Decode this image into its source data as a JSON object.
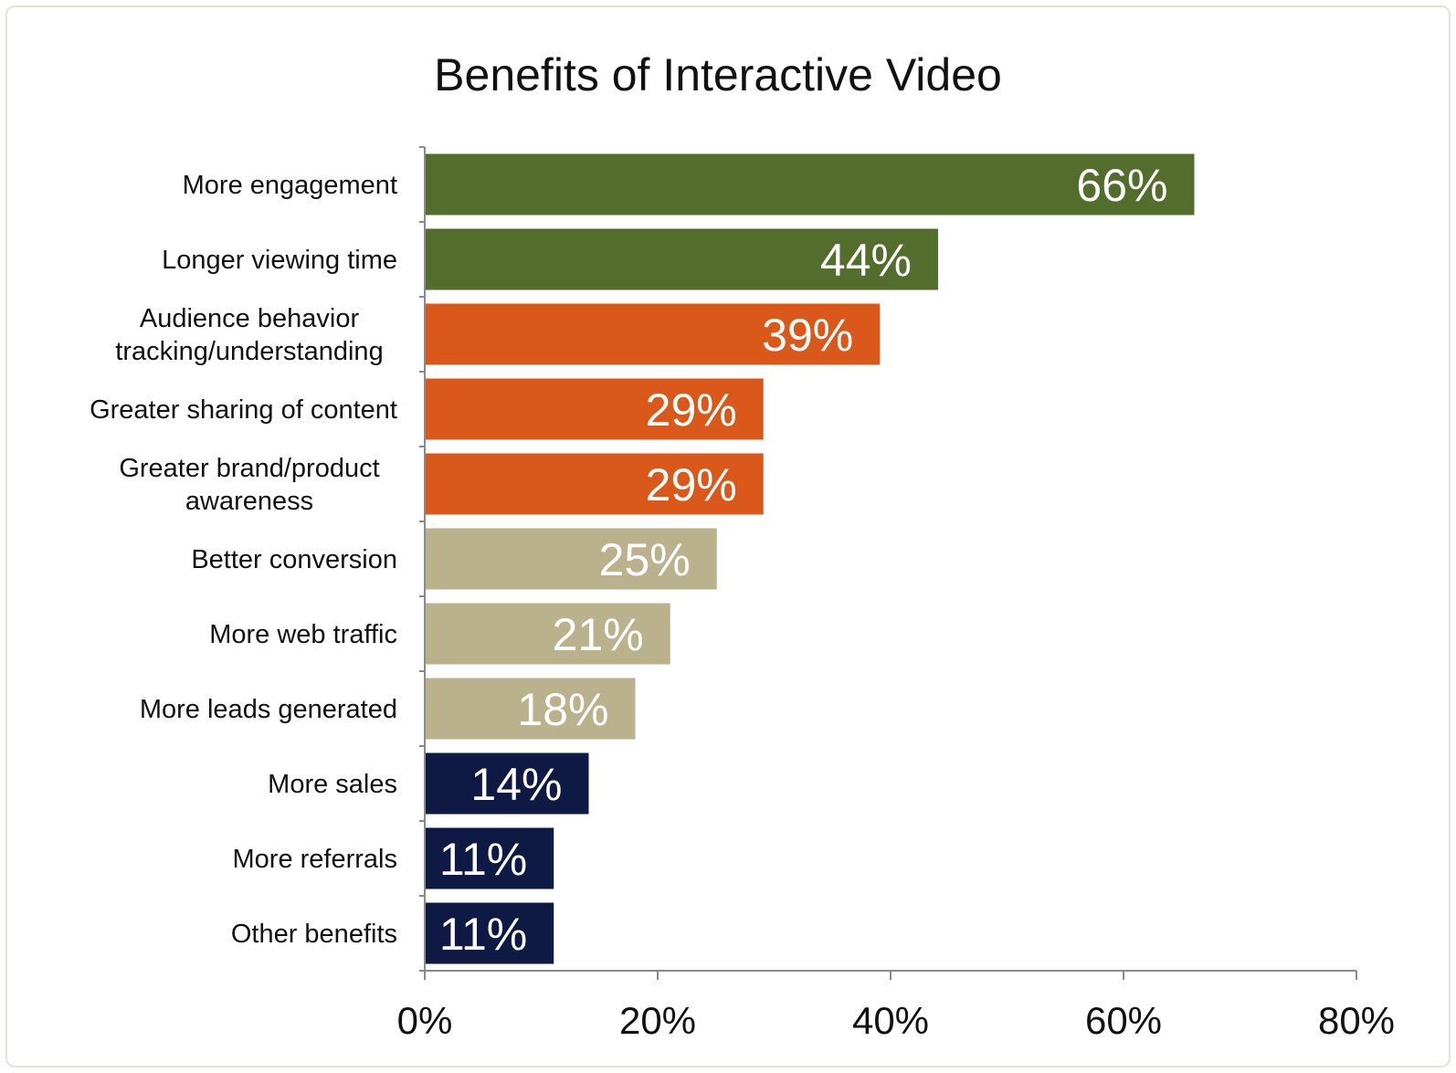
{
  "chart_data": {
    "type": "bar",
    "orientation": "horizontal",
    "title": "Benefits of Interactive Video",
    "xlabel": "",
    "ylabel": "",
    "categories": [
      [
        "More engagement"
      ],
      [
        "Longer viewing time"
      ],
      [
        "Audience behavior",
        "tracking/understanding"
      ],
      [
        "Greater sharing of content"
      ],
      [
        "Greater brand/product",
        "awareness"
      ],
      [
        "Better conversion"
      ],
      [
        "More web traffic"
      ],
      [
        "More leads generated"
      ],
      [
        "More sales"
      ],
      [
        "More referrals"
      ],
      [
        "Other benefits"
      ]
    ],
    "values": [
      66,
      44,
      39,
      29,
      29,
      25,
      21,
      18,
      14,
      11,
      11
    ],
    "data_labels": [
      "66%",
      "44%",
      "39%",
      "29%",
      "29%",
      "25%",
      "21%",
      "18%",
      "14%",
      "11%",
      "11%"
    ],
    "bar_colors": [
      "#536d2d",
      "#536d2d",
      "#d9581a",
      "#d9581a",
      "#d9581a",
      "#bab28c",
      "#bab28c",
      "#bab28c",
      "#0f1a44",
      "#0f1a44",
      "#0f1a44"
    ],
    "xlim": [
      0,
      80
    ],
    "xticks": [
      0,
      20,
      40,
      60,
      80
    ],
    "xtick_labels": [
      "0%",
      "20%",
      "40%",
      "60%",
      "80%"
    ],
    "grid": false,
    "legend": "none"
  }
}
